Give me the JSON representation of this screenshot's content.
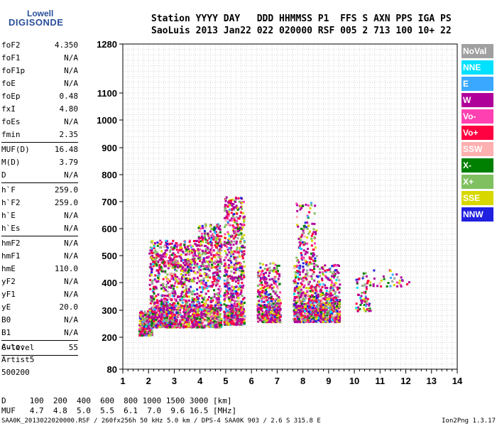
{
  "logo": {
    "line1": "Lowell",
    "line2": "DIGISONDE"
  },
  "header": {
    "row1": "Station YYYY DAY   DDD HHMMSS P1  FFS S AXN PPS IGA PS",
    "row2": "SaoLuis 2013 Jan22 022 020000 RSF 005 2 713 100 10+ 22"
  },
  "params": [
    {
      "name": "foF2",
      "value": "4.350"
    },
    {
      "name": "foF1",
      "value": "N/A"
    },
    {
      "name": "foF1p",
      "value": "N/A"
    },
    {
      "name": "foE",
      "value": "N/A"
    },
    {
      "name": "foEp",
      "value": "0.48"
    },
    {
      "name": "fxI",
      "value": "4.80"
    },
    {
      "name": "foEs",
      "value": "N/A"
    },
    {
      "name": "fmin",
      "value": "2.35"
    },
    {
      "sep": true
    },
    {
      "name": "MUF(D)",
      "value": "16.48"
    },
    {
      "name": "M(D)",
      "value": "3.79"
    },
    {
      "name": "D",
      "value": "N/A"
    },
    {
      "sep": true
    },
    {
      "name": "h`F",
      "value": "259.0"
    },
    {
      "name": "h`F2",
      "value": "259.0"
    },
    {
      "name": "h`E",
      "value": "N/A"
    },
    {
      "name": "h`Es",
      "value": "N/A"
    },
    {
      "sep": true
    },
    {
      "name": "hmF2",
      "value": "N/A"
    },
    {
      "name": "hmF1",
      "value": "N/A"
    },
    {
      "name": "hmE",
      "value": "110.0"
    },
    {
      "name": "yF2",
      "value": "N/A"
    },
    {
      "name": "yF1",
      "value": "N/A"
    },
    {
      "name": "yE",
      "value": "20.0"
    },
    {
      "name": "B0",
      "value": "N/A"
    },
    {
      "name": "B1",
      "value": "N/A"
    },
    {
      "sep": true
    },
    {
      "name": "C-level",
      "value": "55"
    },
    {
      "sep": true
    }
  ],
  "auto": {
    "line1": "Auto:",
    "line2": "Artist5",
    "line3": "500200"
  },
  "bottom": {
    "d_row": "D     100  200  400  600  800 1000 1500 3000 [km]",
    "muf_row": "MUF   4.7  4.8  5.0  5.5  6.1  7.0  9.6 16.5 [MHz]"
  },
  "footer": {
    "left": "SAA0K_2013022020000.RSF / 260fx256h 50 kHz 5.0 km / DPS-4 SAA0K 903 / 2.6 S 315.8 E",
    "right": "Ion2Png 1.3.17"
  },
  "legend": [
    {
      "label": "NoVal",
      "color": "#a0a0a0"
    },
    {
      "label": "NNE",
      "color": "#00e0ff"
    },
    {
      "label": "E",
      "color": "#3aa8ff"
    },
    {
      "label": "W",
      "color": "#b0009a"
    },
    {
      "label": "Vo-",
      "color": "#ff40b0"
    },
    {
      "label": "Vo+",
      "color": "#ff0040"
    },
    {
      "label": "SSW",
      "color": "#ffb0b0"
    },
    {
      "label": "X-",
      "color": "#008000"
    },
    {
      "label": "X+",
      "color": "#80c060"
    },
    {
      "label": "SSE",
      "color": "#d8d800"
    },
    {
      "label": "NNW",
      "color": "#2020e0"
    }
  ],
  "chart_data": {
    "type": "scatter",
    "xlim": [
      1,
      14
    ],
    "xticks": [
      "1",
      "2",
      "3",
      "4",
      "5",
      "6",
      "7",
      "8",
      "9",
      "10",
      "11",
      "12",
      "13",
      "14"
    ],
    "yticks_nonlinear": [
      {
        "value": 80,
        "label": "80"
      },
      {
        "value": 200,
        "label": "200"
      },
      {
        "value": 300,
        "label": "300"
      },
      {
        "value": 400,
        "label": "400"
      },
      {
        "value": 500,
        "label": "500"
      },
      {
        "value": 600,
        "label": "600"
      },
      {
        "value": 700,
        "label": "700"
      },
      {
        "value": 800,
        "label": "800"
      },
      {
        "value": 900,
        "label": "900"
      },
      {
        "value": 1000,
        "label": "1000"
      },
      {
        "value": 1100,
        "label": "1100"
      },
      {
        "value": 1280,
        "label": "1280"
      }
    ],
    "ylim": [
      80,
      1280
    ],
    "grid": true,
    "clusters": [
      {
        "x": [
          1.6,
          2.1
        ],
        "y": [
          210,
          300
        ],
        "n": 220
      },
      {
        "x": [
          2.0,
          4.8
        ],
        "y": [
          240,
          320
        ],
        "n": 900
      },
      {
        "x": [
          2.0,
          4.8
        ],
        "y": [
          320,
          460
        ],
        "n": 500
      },
      {
        "x": [
          2.0,
          3.9
        ],
        "y": [
          460,
          560
        ],
        "n": 320
      },
      {
        "x": [
          3.9,
          4.8
        ],
        "y": [
          460,
          620
        ],
        "n": 250
      },
      {
        "x": [
          4.9,
          5.7
        ],
        "y": [
          250,
          300
        ],
        "n": 260
      },
      {
        "x": [
          4.9,
          5.7
        ],
        "y": [
          300,
          720
        ],
        "n": 500
      },
      {
        "x": [
          6.2,
          7.1
        ],
        "y": [
          260,
          320
        ],
        "n": 260
      },
      {
        "x": [
          6.2,
          7.1
        ],
        "y": [
          320,
          480
        ],
        "n": 200
      },
      {
        "x": [
          7.6,
          9.4
        ],
        "y": [
          260,
          340
        ],
        "n": 650
      },
      {
        "x": [
          7.6,
          9.4
        ],
        "y": [
          340,
          470
        ],
        "n": 320
      },
      {
        "x": [
          7.7,
          8.5
        ],
        "y": [
          470,
          700
        ],
        "n": 120
      },
      {
        "x": [
          10.0,
          10.6
        ],
        "y": [
          300,
          420
        ],
        "n": 60
      },
      {
        "x": [
          10.3,
          12.2
        ],
        "y": [
          390,
          450
        ],
        "n": 40
      }
    ],
    "colors_weights": [
      {
        "c": "#b0009a",
        "w": 30
      },
      {
        "c": "#ff0040",
        "w": 14
      },
      {
        "c": "#d8d800",
        "w": 12
      },
      {
        "c": "#80c060",
        "w": 10
      },
      {
        "c": "#008000",
        "w": 6
      },
      {
        "c": "#ff40b0",
        "w": 8
      },
      {
        "c": "#2020e0",
        "w": 5
      },
      {
        "c": "#a0a0a0",
        "w": 6
      },
      {
        "c": "#3aa8ff",
        "w": 3
      },
      {
        "c": "#ffb0b0",
        "w": 4
      },
      {
        "c": "#00e0ff",
        "w": 2
      }
    ]
  }
}
